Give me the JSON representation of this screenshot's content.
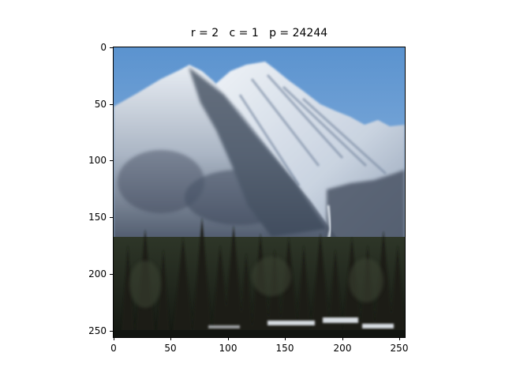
{
  "title": "r = 2   c = 1   p = 24244",
  "image": {
    "subject": "snow-capped-mountain-with-pine-forest",
    "colors": {
      "sky_top": "#5b93cf",
      "sky_bottom": "#a8c6e6",
      "snow": "#eef2f7",
      "snow_shadow": "#9aa9bd",
      "rock_dark": "#3a4658",
      "forest": "#1c2218",
      "forest_light": "#3b4333",
      "river": "#d8dde3"
    }
  },
  "axes": {
    "x_ticks": [
      "0",
      "50",
      "100",
      "150",
      "200",
      "250"
    ],
    "y_ticks": [
      "0",
      "50",
      "100",
      "150",
      "200",
      "250"
    ],
    "xlim": [
      -0.5,
      255.5
    ],
    "ylim": [
      255.5,
      -0.5
    ]
  }
}
